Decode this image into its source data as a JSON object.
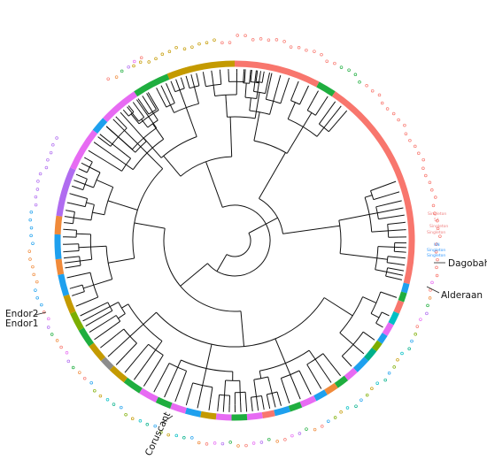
{
  "figure": {
    "region_labels": [
      {
        "id": "dagobah",
        "text": "Dagobah"
      },
      {
        "id": "alderaan",
        "text": "Alderaan"
      },
      {
        "id": "endor2",
        "text": "Endor2"
      },
      {
        "id": "endor1",
        "text": "Endor1"
      },
      {
        "id": "coruscant",
        "text": "Coruscant"
      }
    ],
    "tip_marks": [
      {
        "id": "singleton-1",
        "text": "Singleton",
        "color": "#f08080"
      },
      {
        "id": "singleton-5a",
        "text": "5A",
        "color": "#f08080"
      },
      {
        "id": "singleton-2",
        "text": "Singleton",
        "color": "#f08080"
      },
      {
        "id": "singleton-3",
        "text": "Singleton",
        "color": "#f08080"
      },
      {
        "id": "un",
        "text": "UN",
        "color": "#3399ff"
      },
      {
        "id": "singleton-4",
        "text": "Singleton",
        "color": "#3399ff"
      },
      {
        "id": "singleton-5",
        "text": "Singleton",
        "color": "#3399ff"
      }
    ],
    "ring_colors": {
      "salmon": "#f8766d",
      "olive": "#c49a00",
      "green": "#1fae3f",
      "blue": "#1ea0ee",
      "magenta": "#e76bf3",
      "purple": "#b06cf0",
      "orange": "#f08a3a",
      "cyan": "#00bfc4",
      "lime": "#7cae00",
      "teal": "#00b089",
      "gray": "#8c8c8c"
    }
  }
}
